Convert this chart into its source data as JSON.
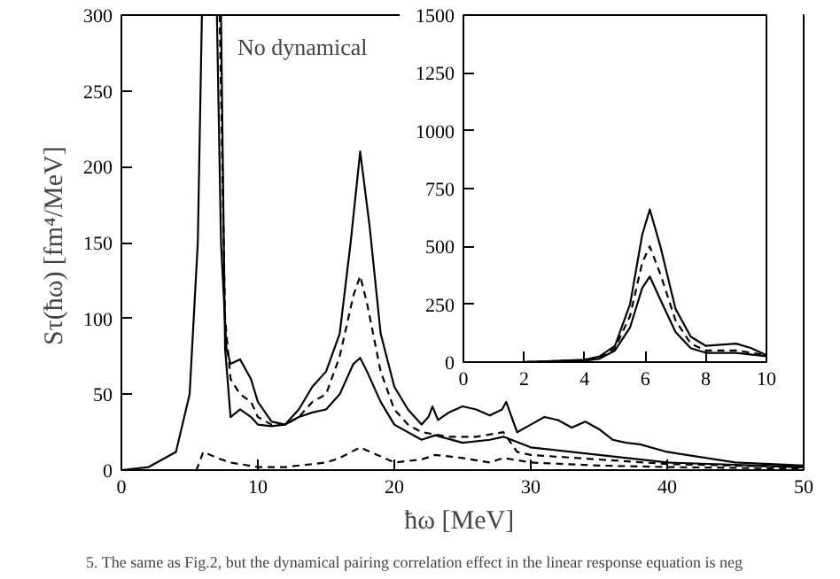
{
  "chart_data": [
    {
      "type": "line",
      "title": "No dynamical",
      "xlabel": "ħω  [MeV]",
      "ylabel": "Sτ(ħω)  [fm⁴/MeV]",
      "annotations": [
        "5.   The same as Fig.2, but the dynamical pairing correlation effect in the linear response equation is neg"
      ],
      "xlim": [
        0,
        50
      ],
      "ylim": [
        0,
        300
      ],
      "xticks": [
        0,
        10,
        20,
        30,
        40,
        50
      ],
      "yticks": [
        0,
        50,
        100,
        150,
        200,
        250,
        300
      ],
      "grid": false,
      "marker": "none",
      "series": [
        {
          "color": "#000000",
          "line_style": "solid",
          "x": [
            0,
            2,
            4,
            5,
            5.6,
            5.9,
            6.3,
            7.0,
            7.3,
            7.7,
            8,
            8.7,
            9.5,
            10,
            11,
            12,
            13,
            14,
            15,
            16,
            16.8,
            17.5,
            18.2,
            19,
            20,
            21,
            22,
            22.5,
            22.8,
            23.2,
            24,
            25,
            26,
            27,
            27.9,
            28.2,
            28.6,
            29,
            30,
            31,
            32,
            33,
            34,
            35,
            36,
            37,
            38,
            40,
            45,
            50
          ],
          "values": [
            0,
            2,
            12,
            50,
            150,
            300,
            null,
            300,
            150,
            80,
            70,
            73,
            60,
            45,
            32,
            30,
            40,
            55,
            65,
            90,
            150,
            210,
            160,
            90,
            55,
            40,
            30,
            35,
            42,
            33,
            38,
            42,
            40,
            36,
            40,
            45,
            35,
            25,
            30,
            35,
            33,
            28,
            32,
            27,
            20,
            18,
            17,
            12,
            5,
            3
          ]
        },
        {
          "color": "#000000",
          "line_style": "dashed",
          "x": [
            7.2,
            7.6,
            8,
            8.7,
            9.5,
            10,
            11,
            12,
            13,
            14,
            15,
            16,
            17,
            17.5,
            18,
            19,
            20,
            21,
            22,
            24,
            26,
            28,
            29,
            30,
            35,
            40,
            50
          ],
          "values": [
            300,
            100,
            60,
            50,
            45,
            35,
            30,
            30,
            35,
            45,
            50,
            75,
            115,
            128,
            110,
            65,
            40,
            30,
            25,
            22,
            22,
            25,
            12,
            10,
            7,
            4,
            2
          ]
        },
        {
          "color": "#000000",
          "line_style": "solid",
          "x": [
            7.3,
            7.6,
            8,
            8.7,
            9.5,
            10,
            11,
            12,
            13,
            14,
            15,
            16,
            17,
            17.5,
            18,
            19,
            20,
            22,
            23,
            25,
            27,
            28,
            30,
            35,
            40,
            50
          ],
          "values": [
            300,
            80,
            35,
            40,
            35,
            30,
            29,
            30,
            35,
            38,
            40,
            50,
            70,
            74,
            65,
            45,
            30,
            20,
            23,
            18,
            20,
            22,
            15,
            10,
            5,
            2
          ]
        },
        {
          "color": "#000000",
          "line_style": "dashed",
          "x": [
            0,
            5.5,
            6,
            7,
            8,
            10,
            12,
            15,
            16,
            17.5,
            19,
            20,
            22,
            23,
            25,
            27,
            28,
            30,
            35,
            40,
            50
          ],
          "values": [
            0,
            0,
            12,
            8,
            5,
            2,
            2,
            5,
            8,
            15,
            9,
            5,
            7,
            10,
            8,
            5,
            8,
            5,
            3,
            2,
            1
          ]
        }
      ]
    },
    {
      "type": "line",
      "xlim": [
        0,
        10
      ],
      "ylim": [
        0,
        1500
      ],
      "xticks": [
        0,
        2,
        4,
        6,
        8,
        10
      ],
      "yticks": [
        0,
        250,
        500,
        750,
        1000,
        1250,
        1500
      ],
      "grid": false,
      "marker": "none",
      "series": [
        {
          "color": "#000000",
          "line_style": "solid",
          "x": [
            0,
            2,
            4,
            4.5,
            5,
            5.5,
            5.9,
            6.15,
            6.5,
            7,
            7.5,
            8,
            8.5,
            9,
            9.5,
            10
          ],
          "values": [
            0,
            0,
            10,
            25,
            70,
            250,
            550,
            660,
            500,
            230,
            110,
            70,
            75,
            80,
            60,
            30
          ]
        },
        {
          "color": "#000000",
          "line_style": "dashed",
          "x": [
            0,
            2,
            4,
            4.5,
            5,
            5.5,
            5.9,
            6.15,
            6.5,
            7,
            7.5,
            8,
            9,
            10
          ],
          "values": [
            0,
            0,
            8,
            20,
            60,
            200,
            430,
            500,
            380,
            180,
            80,
            50,
            50,
            30
          ]
        },
        {
          "color": "#000000",
          "line_style": "solid",
          "x": [
            0,
            2,
            4,
            4.5,
            5,
            5.5,
            5.9,
            6.15,
            6.5,
            7,
            7.5,
            8,
            9,
            10
          ],
          "values": [
            0,
            0,
            6,
            15,
            50,
            150,
            320,
            370,
            270,
            130,
            60,
            40,
            40,
            25
          ]
        }
      ]
    }
  ]
}
